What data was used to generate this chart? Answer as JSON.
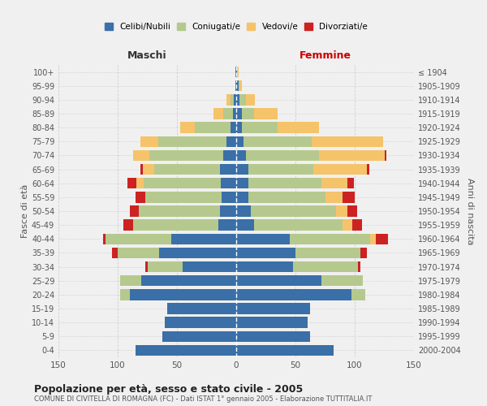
{
  "age_groups": [
    "0-4",
    "5-9",
    "10-14",
    "15-19",
    "20-24",
    "25-29",
    "30-34",
    "35-39",
    "40-44",
    "45-49",
    "50-54",
    "55-59",
    "60-64",
    "65-69",
    "70-74",
    "75-79",
    "80-84",
    "85-89",
    "90-94",
    "95-99",
    "100+"
  ],
  "birth_years": [
    "2000-2004",
    "1995-1999",
    "1990-1994",
    "1985-1989",
    "1980-1984",
    "1975-1979",
    "1970-1974",
    "1965-1969",
    "1960-1964",
    "1955-1959",
    "1950-1954",
    "1945-1949",
    "1940-1944",
    "1935-1939",
    "1930-1934",
    "1925-1929",
    "1920-1924",
    "1915-1919",
    "1910-1914",
    "1905-1909",
    "≤ 1904"
  ],
  "colors": {
    "celibi": "#3a6fa8",
    "coniugati": "#b5c98e",
    "vedovi": "#f5c36a",
    "divorziati": "#cc2222"
  },
  "males": {
    "celibi": [
      85,
      62,
      60,
      58,
      90,
      80,
      45,
      65,
      55,
      15,
      14,
      12,
      13,
      14,
      11,
      8,
      5,
      3,
      2,
      1,
      1
    ],
    "coniugati": [
      0,
      0,
      0,
      0,
      8,
      18,
      30,
      35,
      55,
      72,
      68,
      65,
      65,
      55,
      62,
      58,
      30,
      8,
      3,
      0,
      0
    ],
    "vedovi": [
      0,
      0,
      0,
      0,
      0,
      0,
      0,
      0,
      0,
      0,
      0,
      0,
      6,
      10,
      14,
      15,
      12,
      8,
      3,
      0,
      0
    ],
    "divorziati": [
      0,
      0,
      0,
      0,
      0,
      0,
      2,
      5,
      2,
      8,
      8,
      8,
      8,
      2,
      0,
      0,
      0,
      0,
      0,
      0,
      0
    ]
  },
  "females": {
    "celibi": [
      82,
      62,
      60,
      62,
      97,
      72,
      48,
      50,
      45,
      15,
      12,
      10,
      10,
      10,
      8,
      6,
      5,
      5,
      3,
      2,
      1
    ],
    "coniugati": [
      0,
      0,
      0,
      0,
      12,
      35,
      55,
      55,
      68,
      75,
      72,
      65,
      62,
      55,
      62,
      58,
      30,
      10,
      5,
      1,
      0
    ],
    "vedovi": [
      0,
      0,
      0,
      0,
      0,
      0,
      0,
      0,
      5,
      8,
      10,
      15,
      22,
      45,
      55,
      60,
      35,
      20,
      8,
      2,
      1
    ],
    "divorziati": [
      0,
      0,
      0,
      0,
      0,
      0,
      2,
      5,
      10,
      8,
      8,
      10,
      5,
      2,
      2,
      0,
      0,
      0,
      0,
      0,
      0
    ]
  },
  "title": "Popolazione per età, sesso e stato civile - 2005",
  "subtitle": "COMUNE DI CIVITELLA DI ROMAGNA (FC) - Dati ISTAT 1° gennaio 2005 - Elaborazione TUTTITALIA.IT",
  "ylabel_left": "Fasce di età",
  "ylabel_right": "Anni di nascita",
  "xlabel_left": "Maschi",
  "xlabel_right": "Femmine",
  "xlim": 150,
  "legend_labels": [
    "Celibi/Nubili",
    "Coniugati/e",
    "Vedovi/e",
    "Divorziati/e"
  ],
  "bg_color": "#f0f0f0",
  "grid_color": "#cccccc"
}
